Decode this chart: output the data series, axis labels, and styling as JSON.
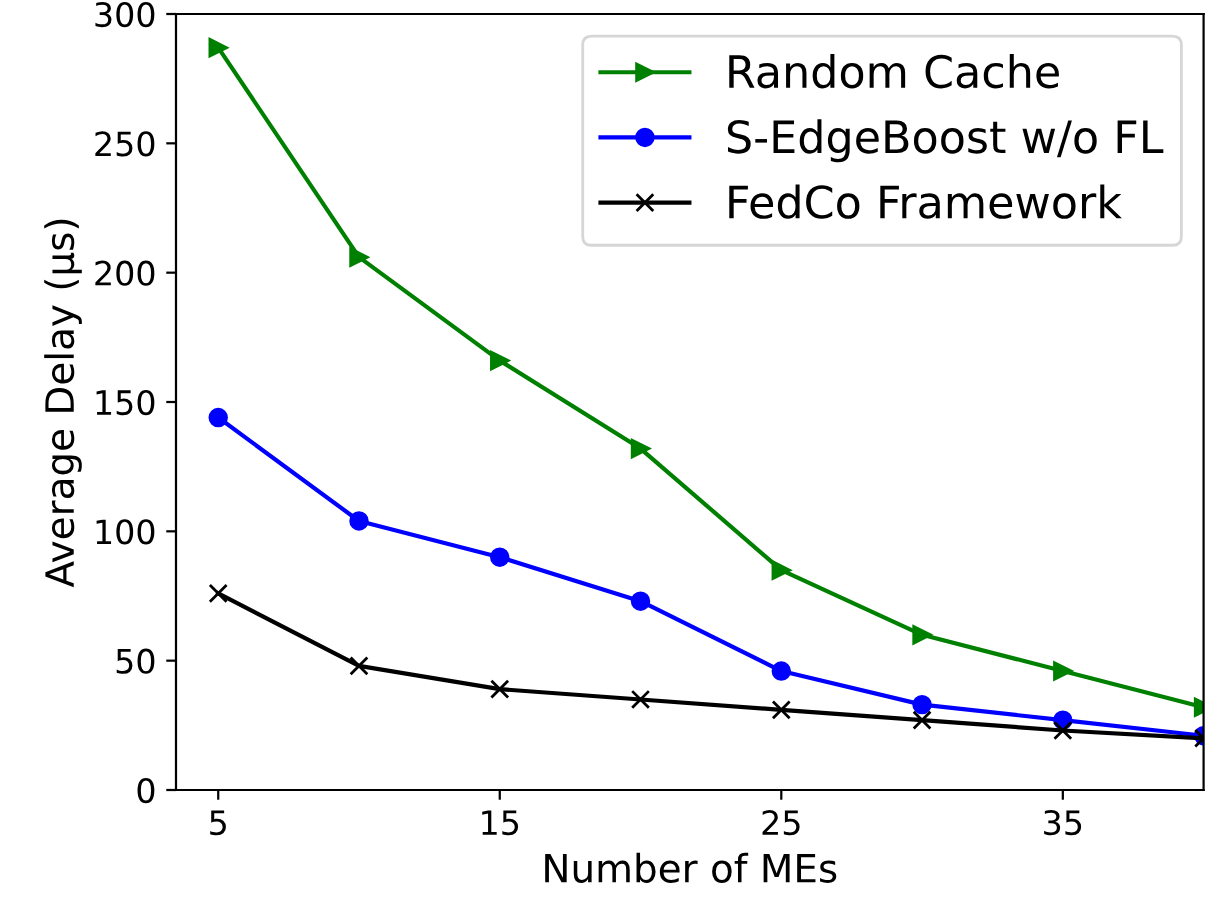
{
  "chart_data": {
    "type": "line",
    "xlabel": "Number of MEs",
    "ylabel": "Average Delay (μs)",
    "x": [
      5,
      10,
      15,
      20,
      25,
      30,
      35,
      40
    ],
    "series": [
      {
        "name": "Random Cache",
        "color": "#008000",
        "marker": "triangle",
        "values": [
          287,
          206,
          166,
          132,
          85,
          60,
          46,
          32
        ]
      },
      {
        "name": "S-EdgeBoost w/o FL",
        "color": "#0000ff",
        "marker": "circle",
        "values": [
          144,
          104,
          90,
          73,
          46,
          33,
          27,
          21
        ]
      },
      {
        "name": "FedCo Framework",
        "color": "#000000",
        "marker": "cross",
        "values": [
          76,
          48,
          39,
          35,
          31,
          27,
          23,
          20
        ]
      }
    ],
    "xlim": [
      3.5,
      40
    ],
    "xticks": [
      5,
      15,
      25,
      35
    ],
    "ylim": [
      0,
      300
    ],
    "yticks": [
      0,
      50,
      100,
      150,
      200,
      250,
      300
    ],
    "legend": "top right",
    "grid": false,
    "line_style": "solid"
  }
}
